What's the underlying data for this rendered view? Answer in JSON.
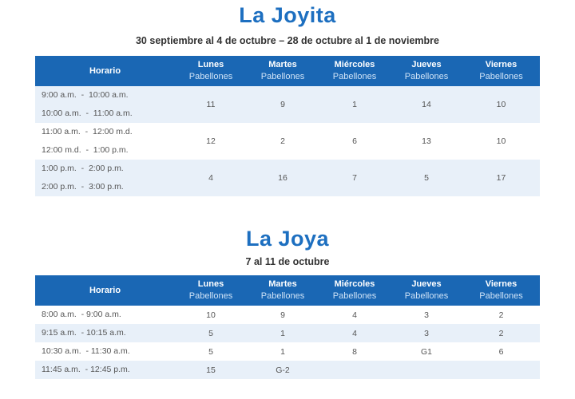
{
  "joyita": {
    "title": "La Joyita",
    "subtitle": "30 septiembre al 4 de octubre  –  28 de octubre al 1 de noviembre",
    "header": {
      "horario": "Horario",
      "days": [
        "Lunes",
        "Martes",
        "Miércoles",
        "Jueves",
        "Viernes"
      ],
      "sub": "Pabellones"
    },
    "rows": [
      {
        "t1": "9:00 a.m.",
        "t1b": "10:00 a.m.",
        "t2": "10:00 a.m.",
        "t2b": "11:00 a.m.",
        "v": [
          "11",
          "9",
          "1",
          "14",
          "10"
        ]
      },
      {
        "t1": "11:00 a.m.",
        "t1b": "12:00 m.d.",
        "t2": "12:00 m.d.",
        "t2b": "1:00 p.m.",
        "v": [
          "12",
          "2",
          "6",
          "13",
          "10"
        ]
      },
      {
        "t1": "1:00 p.m.",
        "t1b": "2:00 p.m.",
        "t2": "2:00 p.m.",
        "t2b": "3:00 p.m.",
        "v": [
          "4",
          "16",
          "7",
          "5",
          "17"
        ]
      }
    ]
  },
  "joya": {
    "title": "La Joya",
    "subtitle": "7 al 11 de octubre",
    "header": {
      "horario": "Horario",
      "days": [
        "Lunes",
        "Martes",
        "Miércoles",
        "Jueves",
        "Viernes"
      ],
      "sub": "Pabellones"
    },
    "rows": [
      {
        "t": "8:00 a.m.",
        "tb": "9:00 a.m.",
        "v": [
          "10",
          "9",
          "4",
          "3",
          "2"
        ]
      },
      {
        "t": "9:15 a.m.",
        "tb": "10:15 a.m.",
        "v": [
          "5",
          "1",
          "4",
          "3",
          "2"
        ]
      },
      {
        "t": "10:30 a.m.",
        "tb": "11:30 a.m.",
        "v": [
          "5",
          "1",
          "8",
          "G1",
          "6"
        ]
      },
      {
        "t": "11:45 a.m.",
        "tb": "12:45 p.m.",
        "v": [
          "15",
          "G-2",
          "",
          "",
          ""
        ]
      }
    ]
  }
}
